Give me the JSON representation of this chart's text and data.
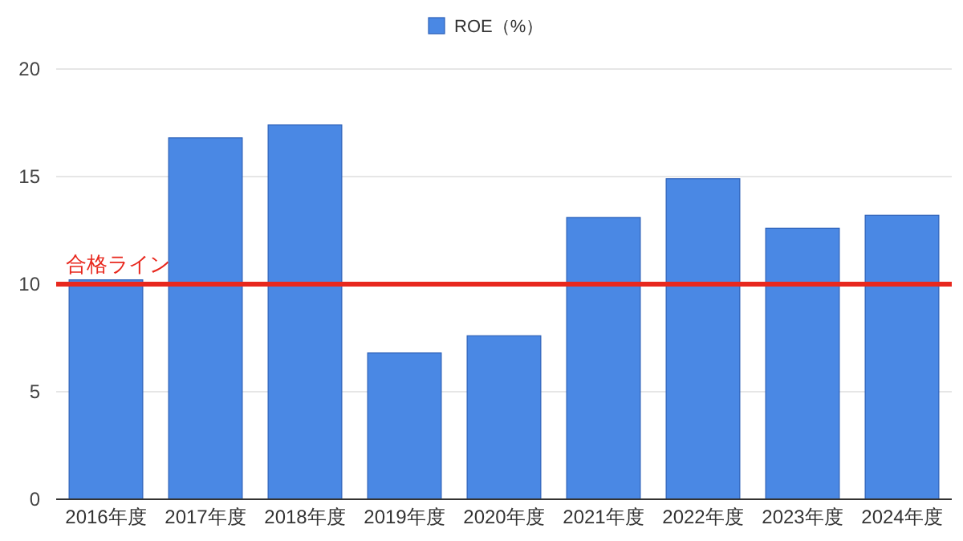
{
  "chart_data": {
    "type": "bar",
    "categories": [
      "2016年度",
      "2017年度",
      "2018年度",
      "2019年度",
      "2020年度",
      "2021年度",
      "2022年度",
      "2023年度",
      "2024年度"
    ],
    "series": [
      {
        "name": "ROE（%）",
        "color": "#4a88e4",
        "values": [
          10.2,
          16.8,
          17.4,
          6.8,
          7.6,
          13.1,
          14.9,
          12.6,
          13.2
        ]
      }
    ],
    "ylim": [
      0,
      20
    ],
    "yticks": [
      0,
      5,
      10,
      15,
      20
    ],
    "grid": "y",
    "legend": "top",
    "ref_lines": [
      {
        "axis": "y",
        "value": 10,
        "label": "合格ライン",
        "color": "#e8281e",
        "line_style": "solid"
      }
    ]
  }
}
